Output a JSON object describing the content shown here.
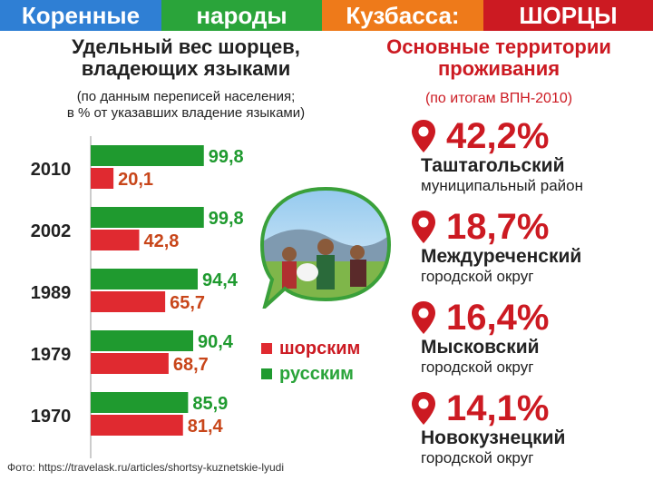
{
  "banner": {
    "seg1": "Коренные",
    "seg2": "народы",
    "seg3": "Кузбасса:",
    "seg4": "ШОРЦЫ"
  },
  "left": {
    "title_line1": "Удельный вес шорцев,",
    "title_line2": "владеющих языками",
    "sub_line1": "(по данным переписей населения;",
    "sub_line2": "в % от указавших владение языками)"
  },
  "right": {
    "title_line1": "Основные территории",
    "title_line2": "проживания",
    "sub": "(по итогам ВПН-2010)",
    "territories": [
      {
        "pct": "42,2%",
        "name": "Таштагольский",
        "type": "муниципальный район"
      },
      {
        "pct": "18,7%",
        "name": "Междуреченский",
        "type": "городской округ"
      },
      {
        "pct": "16,4%",
        "name": "Мысковский",
        "type": "городской округ"
      },
      {
        "pct": "14,1%",
        "name": "Новокузнецкий",
        "type": "городской округ"
      }
    ]
  },
  "chart_data": {
    "type": "bar",
    "orientation": "horizontal",
    "categories": [
      "2010",
      "2002",
      "1989",
      "1979",
      "1970"
    ],
    "series": [
      {
        "name": "русским",
        "color": "#1f9a2f",
        "values": [
          99.8,
          99.8,
          94.4,
          90.4,
          85.9
        ],
        "labels": [
          "99,8",
          "99,8",
          "94,4",
          "90,4",
          "85,9"
        ]
      },
      {
        "name": "шорским",
        "color": "#e02a30",
        "values": [
          20.1,
          42.8,
          65.7,
          68.7,
          81.4
        ],
        "labels": [
          "20,1",
          "42,8",
          "65,7",
          "68,7",
          "81,4"
        ]
      }
    ],
    "xlim": [
      0,
      100
    ]
  },
  "legend": {
    "shor": "шорским",
    "rus": "русским"
  },
  "credit": "Фото: https://travelask.ru/articles/shortsy-kuznetskie-lyudi",
  "colors": {
    "red": "#cc1a22",
    "green": "#2aa43a",
    "blue": "#2f7fd4",
    "orange": "#ee7a1a"
  }
}
